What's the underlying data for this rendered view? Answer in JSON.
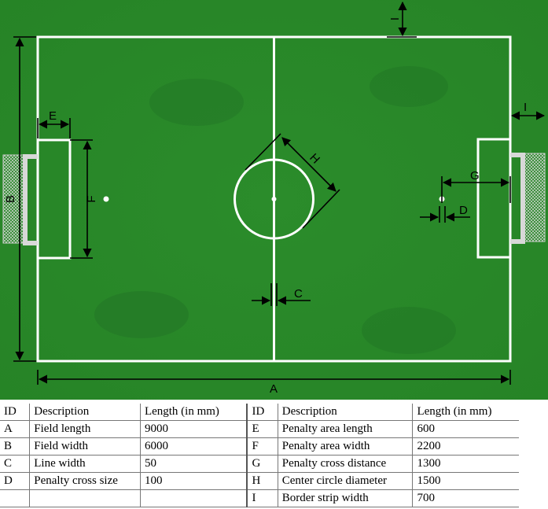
{
  "field_labels": {
    "A": "A",
    "B": "B",
    "C": "C",
    "D": "D",
    "E": "E",
    "F": "F",
    "G": "G",
    "H": "H",
    "I": "I"
  },
  "colors": {
    "grass": "#2a8a2a",
    "grass_dark": "#1f6a24",
    "line": "#ffffff",
    "dimension": "#000000",
    "goal_frame": "#d8d8d8"
  },
  "table": {
    "headers": {
      "id": "ID",
      "description": "Description",
      "length": "Length (in mm)"
    },
    "left_rows": [
      {
        "id": "A",
        "description": "Field length",
        "length": "9000"
      },
      {
        "id": "B",
        "description": "Field width",
        "length": "6000"
      },
      {
        "id": "C",
        "description": "Line width",
        "length": "50"
      },
      {
        "id": "D",
        "description": "Penalty cross size",
        "length": "100"
      },
      {
        "id": "",
        "description": "",
        "length": ""
      }
    ],
    "right_rows": [
      {
        "id": "E",
        "description": "Penalty area length",
        "length": "600"
      },
      {
        "id": "F",
        "description": "Penalty area width",
        "length": "2200"
      },
      {
        "id": "G",
        "description": "Penalty cross distance",
        "length": "1300"
      },
      {
        "id": "H",
        "description": "Center circle diameter",
        "length": "1500"
      },
      {
        "id": "I",
        "description": "Border strip width",
        "length": "700"
      }
    ]
  }
}
